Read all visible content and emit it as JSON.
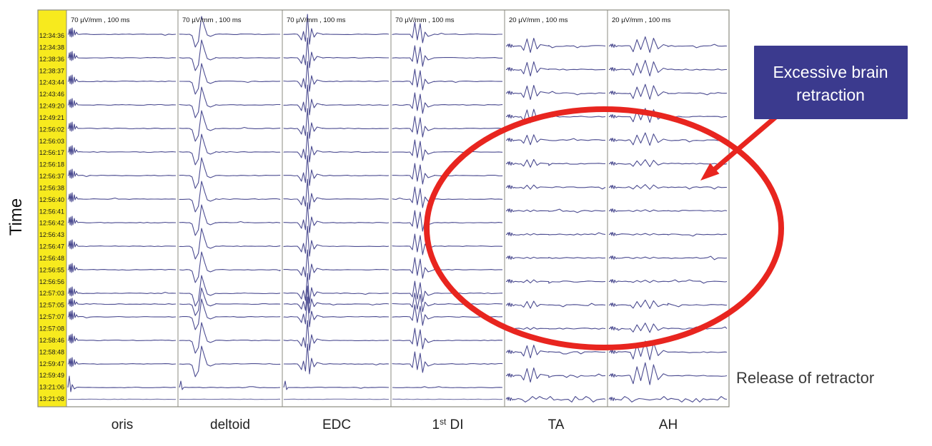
{
  "figure": {
    "time_axis_label": "Time",
    "annotation_box": {
      "line1": "Excessive brain",
      "line2": "retraction",
      "bg": "#3B3A8E",
      "text_color": "#FFFFFF"
    },
    "release_label": "Release of retractor",
    "colors": {
      "trace": "#41418A",
      "grid": "#8B8B80",
      "yellow": "#F7EA1E",
      "red": "#E8251F",
      "text": "#1A1A1A"
    }
  },
  "chart_data": {
    "type": "line",
    "description": "Intraoperative motor evoked potential (MEP) traces over time for six muscles; TA and AH responses disappear during excessive brain retraction and recover after release of retractor.",
    "time_axis_label": "Time",
    "channels": [
      {
        "id": "oris",
        "label": "oris",
        "scale": "70 µV/mm , 100 ms"
      },
      {
        "id": "deltoid",
        "label": "deltoid",
        "scale": "70 µV/mm , 100 ms"
      },
      {
        "id": "edc",
        "label": "EDC",
        "scale": "70 µV/mm , 100 ms"
      },
      {
        "id": "di",
        "label": "1[st] DI",
        "scale": "70 µV/mm , 100 ms"
      },
      {
        "id": "ta",
        "label": "TA",
        "scale": "20 µV/mm , 100 ms"
      },
      {
        "id": "ah",
        "label": "AH",
        "scale": "20 µV/mm , 100 ms"
      }
    ],
    "rows": [
      {
        "time_upper": "12:34:36",
        "time_lower": "12:34:38",
        "amps": {
          "oris": 1,
          "deltoid": 1,
          "edc": 1,
          "di": 1,
          "ta": 1.0,
          "ah": 1.0
        }
      },
      {
        "time_upper": "12:38:36",
        "time_lower": "12:38:37",
        "amps": {
          "oris": 1,
          "deltoid": 1,
          "edc": 1,
          "di": 1,
          "ta": 1.0,
          "ah": 1.0
        }
      },
      {
        "time_upper": "12:43:44",
        "time_lower": "12:43:46",
        "amps": {
          "oris": 1,
          "deltoid": 1,
          "edc": 1,
          "di": 1,
          "ta": 1.0,
          "ah": 0.95
        }
      },
      {
        "time_upper": "12:49:20",
        "time_lower": "12:49:21",
        "amps": {
          "oris": 1,
          "deltoid": 1,
          "edc": 1,
          "di": 1,
          "ta": 0.95,
          "ah": 0.9
        }
      },
      {
        "time_upper": "12:56:02",
        "time_lower": "12:56:03",
        "amps": {
          "oris": 1,
          "deltoid": 1,
          "edc": 1,
          "di": 1,
          "ta": 0.7,
          "ah": 0.8
        }
      },
      {
        "time_upper": "12:56:17",
        "time_lower": "12:56:18",
        "amps": {
          "oris": 1,
          "deltoid": 1,
          "edc": 1,
          "di": 1,
          "ta": 0.55,
          "ah": 0.45
        }
      },
      {
        "time_upper": "12:56:37",
        "time_lower": "12:56:38",
        "amps": {
          "oris": 1,
          "deltoid": 1,
          "edc": 1,
          "di": 1,
          "ta": 0.3,
          "ah": 0.3
        }
      },
      {
        "time_upper": "12:56:40",
        "time_lower": "12:56:41",
        "amps": {
          "oris": 1,
          "deltoid": 1,
          "edc": 1,
          "di": 1,
          "ta": 0.12,
          "ah": 0.12
        }
      },
      {
        "time_upper": "12:56:42",
        "time_lower": "12:56:43",
        "amps": {
          "oris": 1,
          "deltoid": 1,
          "edc": 1,
          "di": 1,
          "ta": 0.1,
          "ah": 0.1
        }
      },
      {
        "time_upper": "12:56:47",
        "time_lower": "12:56:48",
        "amps": {
          "oris": 1,
          "deltoid": 1,
          "edc": 1,
          "di": 1,
          "ta": 0.1,
          "ah": 0.1
        }
      },
      {
        "time_upper": "12:56:55",
        "time_lower": "12:56:56",
        "amps": {
          "oris": 1,
          "deltoid": 1,
          "edc": 1,
          "di": 1,
          "ta": 0.22,
          "ah": 0.15
        }
      },
      {
        "time_upper": "12:57:03",
        "time_lower": "12:57:05",
        "double": true,
        "amps": {
          "oris": 1,
          "deltoid": 1,
          "edc": 1,
          "di": 1,
          "ta": 0.5,
          "ah": 0.55
        }
      },
      {
        "time_upper": "12:57:07",
        "time_lower": "12:57:08",
        "amps": {
          "oris": 1,
          "deltoid": 1,
          "edc": 1,
          "di": 1,
          "ta": 0.15,
          "ah": 0.6
        }
      },
      {
        "time_upper": "12:58:46",
        "time_lower": "12:58:48",
        "amps": {
          "oris": 1,
          "deltoid": 1,
          "edc": 1,
          "di": 1,
          "ta": 0.9,
          "ah": 1.2
        }
      },
      {
        "time_upper": "12:59:47",
        "time_lower": "12:59:49",
        "amps": {
          "oris": 1,
          "deltoid": 1,
          "edc": 1,
          "di": 1,
          "ta": 1.0,
          "ah": 1.4
        }
      },
      {
        "time_upper": "13:21:06",
        "time_lower": "13:21:08",
        "flat": true,
        "amps": {
          "oris": 0,
          "deltoid": 0,
          "edc": 0,
          "di": 0,
          "ta": 0,
          "ah": 0
        }
      }
    ]
  }
}
